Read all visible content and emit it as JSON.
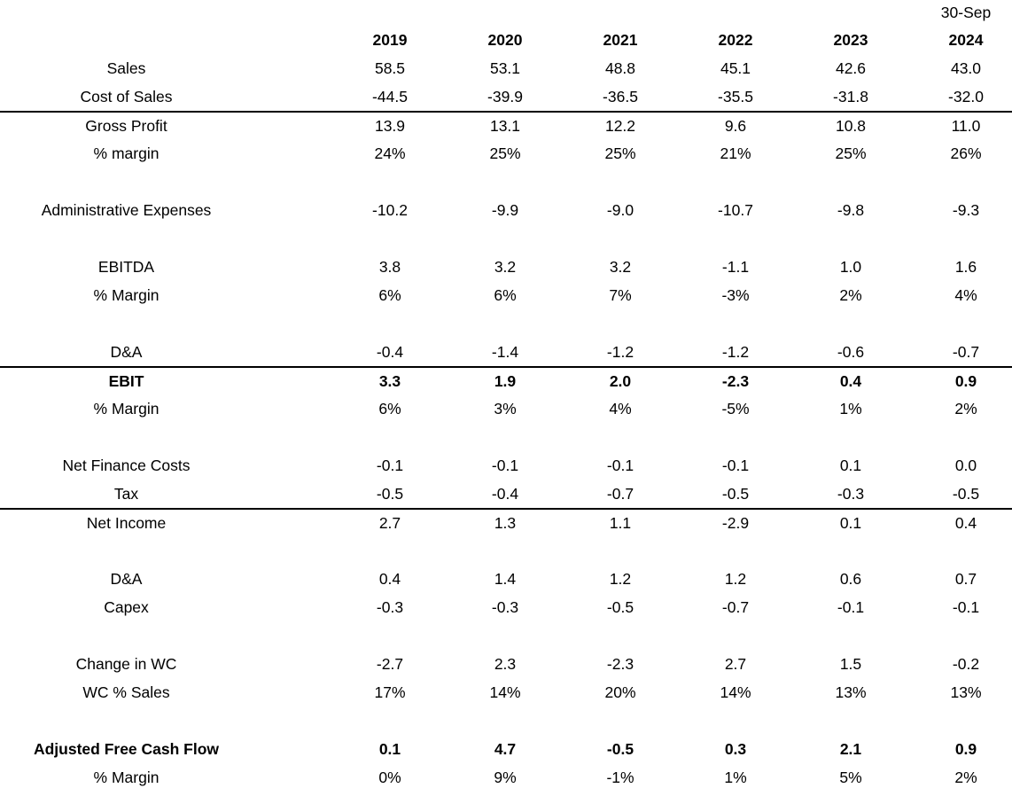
{
  "table": {
    "period_note": "30-Sep",
    "years": [
      "2019",
      "2020",
      "2021",
      "2022",
      "2023",
      "2024"
    ],
    "rows": [
      {
        "label": "Sales",
        "values": [
          "58.5",
          "53.1",
          "48.8",
          "45.1",
          "42.6",
          "43.0"
        ],
        "bold": false,
        "border_bottom": false,
        "spacer_before": false
      },
      {
        "label": "Cost of Sales",
        "values": [
          "-44.5",
          "-39.9",
          "-36.5",
          "-35.5",
          "-31.8",
          "-32.0"
        ],
        "bold": false,
        "border_bottom": true,
        "spacer_before": false
      },
      {
        "label": "Gross Profit",
        "values": [
          "13.9",
          "13.1",
          "12.2",
          "9.6",
          "10.8",
          "11.0"
        ],
        "bold": false,
        "border_bottom": false,
        "spacer_before": false
      },
      {
        "label": "% margin",
        "values": [
          "24%",
          "25%",
          "25%",
          "21%",
          "25%",
          "26%"
        ],
        "bold": false,
        "border_bottom": false,
        "spacer_before": false
      },
      {
        "label": "Administrative Expenses",
        "values": [
          "-10.2",
          "-9.9",
          "-9.0",
          "-10.7",
          "-9.8",
          "-9.3"
        ],
        "bold": false,
        "border_bottom": false,
        "spacer_before": true
      },
      {
        "label": "EBITDA",
        "values": [
          "3.8",
          "3.2",
          "3.2",
          "-1.1",
          "1.0",
          "1.6"
        ],
        "bold": false,
        "border_bottom": false,
        "spacer_before": true
      },
      {
        "label": "% Margin",
        "values": [
          "6%",
          "6%",
          "7%",
          "-3%",
          "2%",
          "4%"
        ],
        "bold": false,
        "border_bottom": false,
        "spacer_before": false
      },
      {
        "label": "D&A",
        "values": [
          "-0.4",
          "-1.4",
          "-1.2",
          "-1.2",
          "-0.6",
          "-0.7"
        ],
        "bold": false,
        "border_bottom": true,
        "spacer_before": true
      },
      {
        "label": "EBIT",
        "values": [
          "3.3",
          "1.9",
          "2.0",
          "-2.3",
          "0.4",
          "0.9"
        ],
        "bold": true,
        "border_bottom": false,
        "spacer_before": false
      },
      {
        "label": "% Margin",
        "values": [
          "6%",
          "3%",
          "4%",
          "-5%",
          "1%",
          "2%"
        ],
        "bold": false,
        "border_bottom": false,
        "spacer_before": false
      },
      {
        "label": "Net Finance Costs",
        "values": [
          "-0.1",
          "-0.1",
          "-0.1",
          "-0.1",
          "0.1",
          "0.0"
        ],
        "bold": false,
        "border_bottom": false,
        "spacer_before": true
      },
      {
        "label": "Tax",
        "values": [
          "-0.5",
          "-0.4",
          "-0.7",
          "-0.5",
          "-0.3",
          "-0.5"
        ],
        "bold": false,
        "border_bottom": true,
        "spacer_before": false
      },
      {
        "label": "Net Income",
        "values": [
          "2.7",
          "1.3",
          "1.1",
          "-2.9",
          "0.1",
          "0.4"
        ],
        "bold": false,
        "border_bottom": false,
        "spacer_before": false
      },
      {
        "label": "D&A",
        "values": [
          "0.4",
          "1.4",
          "1.2",
          "1.2",
          "0.6",
          "0.7"
        ],
        "bold": false,
        "border_bottom": false,
        "spacer_before": true
      },
      {
        "label": "Capex",
        "values": [
          "-0.3",
          "-0.3",
          "-0.5",
          "-0.7",
          "-0.1",
          "-0.1"
        ],
        "bold": false,
        "border_bottom": false,
        "spacer_before": false
      },
      {
        "label": "Change in WC",
        "values": [
          "-2.7",
          "2.3",
          "-2.3",
          "2.7",
          "1.5",
          "-0.2"
        ],
        "bold": false,
        "border_bottom": false,
        "spacer_before": true
      },
      {
        "label": "WC % Sales",
        "values": [
          "17%",
          "14%",
          "20%",
          "14%",
          "13%",
          "13%"
        ],
        "bold": false,
        "border_bottom": false,
        "spacer_before": false
      },
      {
        "label": "Adjusted Free Cash Flow",
        "values": [
          "0.1",
          "4.7",
          "-0.5",
          "0.3",
          "2.1",
          "0.9"
        ],
        "bold": true,
        "border_bottom": false,
        "spacer_before": true
      },
      {
        "label": "% Margin",
        "values": [
          "0%",
          "9%",
          "-1%",
          "1%",
          "5%",
          "2%"
        ],
        "bold": false,
        "border_bottom": false,
        "spacer_before": false
      }
    ]
  }
}
